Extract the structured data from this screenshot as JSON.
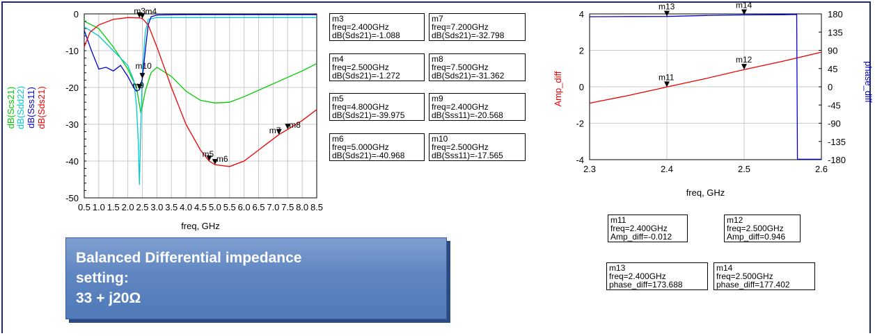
{
  "banner": {
    "line1": "Balanced Differential impedance",
    "line2": "setting:",
    "line3": "33 + j20Ω"
  },
  "left_markers": [
    {
      "id": "m3",
      "l1": "freq=2.400GHz",
      "l2": "dB(Sds21)=-1.088"
    },
    {
      "id": "m4",
      "l1": "freq=2.500GHz",
      "l2": "dB(Sds21)=-1.272"
    },
    {
      "id": "m5",
      "l1": "freq=4.800GHz",
      "l2": "dB(Sds21)=-39.975"
    },
    {
      "id": "m6",
      "l1": "freq=5.000GHz",
      "l2": "dB(Sds21)=-40.968"
    },
    {
      "id": "m7",
      "l1": "freq=7.200GHz",
      "l2": "dB(Sds21)=-32.798"
    },
    {
      "id": "m8",
      "l1": "freq=7.500GHz",
      "l2": "dB(Sds21)=-31.362"
    },
    {
      "id": "m9",
      "l1": "freq=2.400GHz",
      "l2": "dB(Sss11)=-20.568"
    },
    {
      "id": "m10",
      "l1": "freq=2.500GHz",
      "l2": "dB(Sss11)=-17.565"
    }
  ],
  "right_markers": [
    {
      "id": "m11",
      "l1": "freq=2.400GHz",
      "l2": "Amp_diff=-0.012"
    },
    {
      "id": "m12",
      "l1": "freq=2.500GHz",
      "l2": "Amp_diff=0.946"
    },
    {
      "id": "m13",
      "l1": "freq=2.400GHz",
      "l2": "phase_diff=173.688"
    },
    {
      "id": "m14",
      "l1": "freq=2.500GHz",
      "l2": "phase_diff=177.402"
    }
  ],
  "chart_data": [
    {
      "type": "line",
      "xlabel": "freq, GHz",
      "ylabel_parts": [
        {
          "text": "dB(Scs21)",
          "color": "#00cc00"
        },
        {
          "text": "dB(Sdd22)",
          "color": "#00c8d2"
        },
        {
          "text": "dB(Sss11)",
          "color": "#0000cc"
        },
        {
          "text": "dB(Sds21)",
          "color": "#ee0000"
        }
      ],
      "xlim": [
        0.5,
        8.5
      ],
      "ylim": [
        -50,
        0
      ],
      "x_ticks": [
        "0.5",
        "1.0",
        "1.5",
        "2.0",
        "2.5",
        "3.0",
        "3.5",
        "4.0",
        "4.5",
        "5.0",
        "5.5",
        "6.0",
        "6.5",
        "7.0",
        "7.5",
        "8.0",
        "8.5"
      ],
      "y_ticks": [
        "-50",
        "-40",
        "-30",
        "-20",
        "-10",
        "0"
      ],
      "series": [
        {
          "name": "dB(Scs21)",
          "color": "#00cc00",
          "x": [
            0.5,
            1.0,
            1.5,
            2.0,
            2.3,
            2.45,
            2.6,
            2.8,
            3.0,
            3.5,
            4.0,
            4.5,
            5.0,
            5.5,
            6.0,
            7.0,
            8.0,
            8.5
          ],
          "y": [
            -2,
            -4,
            -9,
            -15,
            -20,
            -27,
            -21,
            -16,
            -14.5,
            -17,
            -21,
            -23.5,
            -24.2,
            -24,
            -22.5,
            -19,
            -15.5,
            -13.5
          ]
        },
        {
          "name": "dB(Sdd22)",
          "color": "#00c8d2",
          "x": [
            0.5,
            1.0,
            1.5,
            2.0,
            2.2,
            2.3,
            2.36,
            2.4,
            2.45,
            2.5,
            2.6,
            2.7,
            3.0,
            4.0,
            5.0,
            6.0,
            7.0,
            8.0,
            8.5
          ],
          "y": [
            -3.5,
            -6,
            -10,
            -14,
            -18,
            -25,
            -35,
            -46.5,
            -30,
            -16,
            -5,
            -1.5,
            -1,
            -1,
            -1,
            -1,
            -1,
            -1,
            -1
          ]
        },
        {
          "name": "dB(Sss11)",
          "color": "#0000cc",
          "x": [
            0.5,
            0.75,
            1.0,
            1.25,
            1.5,
            1.75,
            2.0,
            2.2,
            2.3,
            2.4,
            2.5,
            2.6,
            2.7,
            2.8,
            3.0,
            4.0,
            5.0,
            6.0,
            7.0,
            8.0,
            8.5
          ],
          "y": [
            -4.5,
            -10,
            -15,
            -14.5,
            -15.5,
            -14,
            -17,
            -20,
            -21,
            -20.6,
            -17.6,
            -10,
            -3,
            -0.8,
            -0.3,
            -0.2,
            -0.2,
            -0.2,
            -0.2,
            -0.2,
            -0.2
          ]
        },
        {
          "name": "dB(Sds21)",
          "color": "#ee0000",
          "x": [
            0.5,
            0.7,
            1.0,
            1.5,
            2.0,
            2.4,
            2.5,
            2.7,
            3.0,
            3.5,
            4.0,
            4.5,
            4.8,
            5.0,
            5.5,
            6.0,
            6.5,
            7.0,
            7.2,
            7.5,
            8.0,
            8.5
          ],
          "y": [
            -9,
            -5,
            -3,
            -1.5,
            -1,
            -1.09,
            -1.27,
            -3,
            -9,
            -20,
            -30,
            -37,
            -40,
            -41,
            -41.5,
            -40,
            -37,
            -34,
            -32.8,
            -31.4,
            -29,
            -26
          ]
        }
      ],
      "markers": [
        {
          "label": "m3",
          "x": 2.4,
          "y": -1.088
        },
        {
          "label": "m4",
          "x": 2.5,
          "y": -1.272
        },
        {
          "label": "m5",
          "x": 4.8,
          "y": -39.975
        },
        {
          "label": "m6",
          "x": 5.0,
          "y": -40.968
        },
        {
          "label": "m7",
          "x": 7.2,
          "y": -32.798
        },
        {
          "label": "m8",
          "x": 7.5,
          "y": -31.362
        },
        {
          "label": "m9",
          "x": 2.4,
          "y": -20.568
        },
        {
          "label": "m10",
          "x": 2.5,
          "y": -17.565
        }
      ]
    },
    {
      "type": "line",
      "xlabel": "freq, GHz",
      "ylabel_left": "Amp_diff",
      "ylabel_right": "phase_diff",
      "xlim": [
        2.3,
        2.6
      ],
      "ylim_left": [
        -4,
        4
      ],
      "ylim_right": [
        -180,
        180
      ],
      "x_ticks": [
        "2.3",
        "2.4",
        "2.5",
        "2.6"
      ],
      "y_ticks_left": [
        "-4",
        "-2",
        "0",
        "2",
        "4"
      ],
      "y_ticks_right": [
        "-180",
        "-135",
        "-90",
        "-45",
        "0",
        "45",
        "90",
        "135",
        "180"
      ],
      "series": [
        {
          "name": "Amp_diff",
          "axis": "left",
          "color": "#ee0000",
          "x": [
            2.3,
            2.35,
            2.4,
            2.45,
            2.5,
            2.55,
            2.6
          ],
          "y": [
            -0.9,
            -0.48,
            -0.012,
            0.45,
            0.946,
            1.4,
            1.9
          ]
        },
        {
          "name": "phase_diff",
          "axis": "right",
          "color": "#0000cc",
          "x": [
            2.3,
            2.35,
            2.4,
            2.45,
            2.5,
            2.55,
            2.568,
            2.569,
            2.6
          ],
          "y": [
            173,
            173.5,
            173.688,
            176,
            177.402,
            178,
            178.5,
            -179,
            -179
          ]
        }
      ],
      "markers": [
        {
          "label": "m11",
          "x": 2.4,
          "y": -0.012,
          "axis": "left"
        },
        {
          "label": "m12",
          "x": 2.5,
          "y": 0.946,
          "axis": "left"
        },
        {
          "label": "m13",
          "x": 2.4,
          "y": 173.688,
          "axis": "right"
        },
        {
          "label": "m14",
          "x": 2.5,
          "y": 177.402,
          "axis": "right"
        }
      ]
    }
  ]
}
